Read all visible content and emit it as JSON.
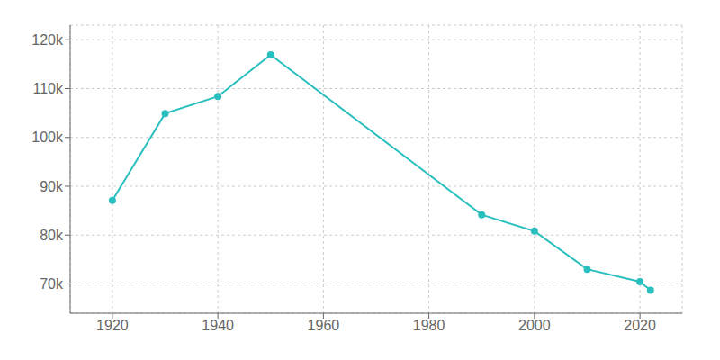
{
  "chart_data": {
    "type": "line",
    "x": [
      1920,
      1930,
      1940,
      1950,
      1990,
      2000,
      2010,
      2020,
      2022
    ],
    "values": [
      87091,
      104906,
      108401,
      116912,
      84161,
      80806,
      73007,
      70447,
      68712
    ],
    "color": "#2abfbf",
    "marker": "circle",
    "xlim": [
      1912,
      2028
    ],
    "xticks": [
      1920,
      1940,
      1960,
      1980,
      2000,
      2020
    ],
    "ylim": [
      64000,
      123000
    ],
    "yticks": [
      {
        "value": 70000,
        "label": "70k"
      },
      {
        "value": 80000,
        "label": "80k"
      },
      {
        "value": 90000,
        "label": "90k"
      },
      {
        "value": 100000,
        "label": "100k"
      },
      {
        "value": 110000,
        "label": "110k"
      },
      {
        "value": 120000,
        "label": "120k"
      }
    ],
    "grid": true
  }
}
